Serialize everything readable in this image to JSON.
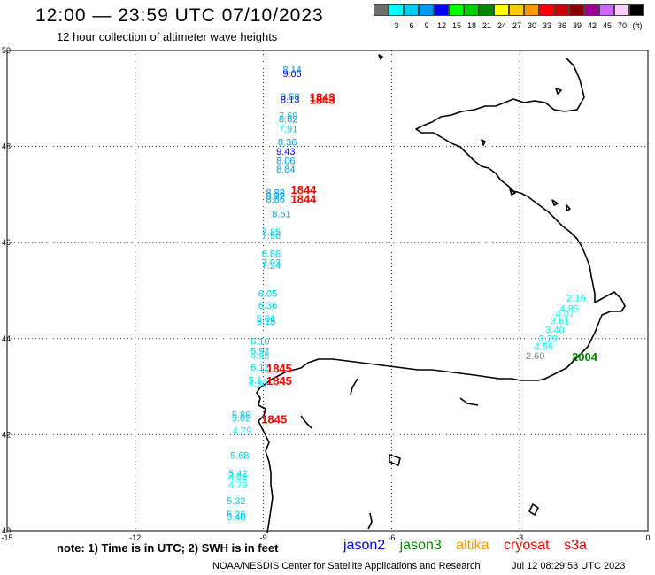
{
  "title": "12:00 — 23:59 UTC 07/10/2023",
  "subtitle": "12 hour collection of altimeter wave heights",
  "color_scale": {
    "unit": "(ft)",
    "bins": [
      {
        "label": "",
        "color": "#6e6e6e"
      },
      {
        "label": "3",
        "color": "#00ffff"
      },
      {
        "label": "6",
        "color": "#00ccee"
      },
      {
        "label": "9",
        "color": "#0099ee"
      },
      {
        "label": "12",
        "color": "#0000ff"
      },
      {
        "label": "15",
        "color": "#00ff00"
      },
      {
        "label": "18",
        "color": "#00cc00"
      },
      {
        "label": "21",
        "color": "#008800"
      },
      {
        "label": "24",
        "color": "#ffff00"
      },
      {
        "label": "27",
        "color": "#ffcc00"
      },
      {
        "label": "30",
        "color": "#ff9900"
      },
      {
        "label": "33",
        "color": "#ff0000"
      },
      {
        "label": "36",
        "color": "#cc0000"
      },
      {
        "label": "39",
        "color": "#880000"
      },
      {
        "label": "42",
        "color": "#990099"
      },
      {
        "label": "45",
        "color": "#cc66ff"
      },
      {
        "label": "70",
        "color": "#ffccff"
      },
      {
        "label": "",
        "color": "#000000"
      }
    ]
  },
  "axes": {
    "lon_ticks": [
      "-15",
      "-12",
      "-9",
      "-6",
      "-3",
      "0"
    ],
    "lat_ticks": [
      "50",
      "48",
      "46",
      "44",
      "42",
      "40"
    ],
    "lon_range": [
      -15,
      0
    ],
    "lat_range": [
      40,
      50
    ],
    "grid": true
  },
  "observations": [
    {
      "text": "8.14",
      "lon": -8.55,
      "lat": 49.53,
      "color": "#0099ee"
    },
    {
      "text": "9.05",
      "lon": -8.55,
      "lat": 49.45,
      "color": "#0000ff"
    },
    {
      "text": "8.53",
      "lon": -8.6,
      "lat": 48.97,
      "color": "#0099ee"
    },
    {
      "text": "8.13",
      "lon": -8.6,
      "lat": 48.9,
      "color": "#0000ff"
    },
    {
      "text": "7.69",
      "lon": -8.64,
      "lat": 48.57,
      "color": "#00ccee"
    },
    {
      "text": "8.62",
      "lon": -8.64,
      "lat": 48.5,
      "color": "#0099ee"
    },
    {
      "text": "7.91",
      "lon": -8.64,
      "lat": 48.3,
      "color": "#00ccee"
    },
    {
      "text": "8.36",
      "lon": -8.66,
      "lat": 48.02,
      "color": "#0099ee"
    },
    {
      "text": "9.43",
      "lon": -8.7,
      "lat": 47.83,
      "color": "#0000ff"
    },
    {
      "text": "8.06",
      "lon": -8.7,
      "lat": 47.63,
      "color": "#0099ee"
    },
    {
      "text": "8.84",
      "lon": -8.7,
      "lat": 47.46,
      "color": "#0099ee"
    },
    {
      "text": "8.88",
      "lon": -8.94,
      "lat": 46.97,
      "color": "#0099ee"
    },
    {
      "text": "8.77",
      "lon": -8.94,
      "lat": 46.9,
      "color": "#0099ee"
    },
    {
      "text": "8.86",
      "lon": -8.94,
      "lat": 46.83,
      "color": "#0099ee"
    },
    {
      "text": "8.51",
      "lon": -8.8,
      "lat": 46.53,
      "color": "#0099ee"
    },
    {
      "text": "7.85",
      "lon": -9.04,
      "lat": 46.15,
      "color": "#00ccee"
    },
    {
      "text": "7.96",
      "lon": -9.04,
      "lat": 46.08,
      "color": "#00ccee"
    },
    {
      "text": "6.86",
      "lon": -9.04,
      "lat": 45.7,
      "color": "#00ccee"
    },
    {
      "text": "7.03",
      "lon": -9.04,
      "lat": 45.52,
      "color": "#00ccee"
    },
    {
      "text": "7.24",
      "lon": -9.04,
      "lat": 45.45,
      "color": "#00ccee"
    },
    {
      "text": "6.05",
      "lon": -9.12,
      "lat": 44.87,
      "color": "#00ccee"
    },
    {
      "text": "6.36",
      "lon": -9.12,
      "lat": 44.62,
      "color": "#00ccee"
    },
    {
      "text": "5.01",
      "lon": -9.16,
      "lat": 44.35,
      "color": "#00ccee"
    },
    {
      "text": "6.15",
      "lon": -9.16,
      "lat": 44.29,
      "color": "#00ccee"
    },
    {
      "text": "6.10",
      "lon": -9.3,
      "lat": 43.88,
      "color": "#00ccee"
    },
    {
      "text": "5.92",
      "lon": -9.3,
      "lat": 43.67,
      "color": "#00ccee"
    },
    {
      "text": "4.95",
      "lon": -9.3,
      "lat": 43.57,
      "color": "#00ffff"
    },
    {
      "text": "6.12",
      "lon": -9.3,
      "lat": 43.33,
      "color": "#00ccee"
    },
    {
      "text": "5.1",
      "lon": -9.35,
      "lat": 43.07,
      "color": "#00ccee"
    },
    {
      "text": "4.90",
      "lon": -9.35,
      "lat": 43.0,
      "color": "#00ffff"
    },
    {
      "text": "5.86",
      "lon": -9.74,
      "lat": 42.35,
      "color": "#00ccee"
    },
    {
      "text": "5.02",
      "lon": -9.74,
      "lat": 42.27,
      "color": "#00ccee"
    },
    {
      "text": "4.79",
      "lon": -9.72,
      "lat": 42.02,
      "color": "#00ffff"
    },
    {
      "text": "5.68",
      "lon": -9.78,
      "lat": 41.5,
      "color": "#00ccee"
    },
    {
      "text": "5.42",
      "lon": -9.82,
      "lat": 41.12,
      "color": "#00ccee"
    },
    {
      "text": "4.82",
      "lon": -9.82,
      "lat": 41.05,
      "color": "#00ffff"
    },
    {
      "text": "4.79",
      "lon": -9.82,
      "lat": 40.88,
      "color": "#00ffff"
    },
    {
      "text": "5.32",
      "lon": -9.86,
      "lat": 40.55,
      "color": "#00ccee"
    },
    {
      "text": "5.26",
      "lon": -9.86,
      "lat": 40.28,
      "color": "#00ccee"
    },
    {
      "text": "5.40",
      "lon": -9.86,
      "lat": 40.21,
      "color": "#00ccee"
    },
    {
      "text": "2.16",
      "lon": -1.9,
      "lat": 44.78,
      "color": "#00ffff"
    },
    {
      "text": "4.85",
      "lon": -2.06,
      "lat": 44.56,
      "color": "#00ffff"
    },
    {
      "text": "4.07",
      "lon": -2.16,
      "lat": 44.45,
      "color": "#00ffff"
    },
    {
      "text": "3.61",
      "lon": -2.28,
      "lat": 44.3,
      "color": "#00ffff"
    },
    {
      "text": "3.40",
      "lon": -2.4,
      "lat": 44.12,
      "color": "#00ffff"
    },
    {
      "text": "3.29",
      "lon": -2.56,
      "lat": 43.93,
      "color": "#00ffff"
    },
    {
      "text": "4.56",
      "lon": -2.66,
      "lat": 43.77,
      "color": "#00ffff"
    },
    {
      "text": "2.60",
      "lon": -2.86,
      "lat": 43.57,
      "color": "#888888"
    }
  ],
  "pass_times": [
    {
      "text": "1843",
      "lon": -7.92,
      "lat": 48.94,
      "color": "#ff0000"
    },
    {
      "text": "1843",
      "lon": -7.92,
      "lat": 48.89,
      "color": "#ff0000"
    },
    {
      "text": "1844",
      "lon": -8.36,
      "lat": 47.02,
      "color": "#ff0000"
    },
    {
      "text": "1844",
      "lon": -8.36,
      "lat": 46.82,
      "color": "#ff0000"
    },
    {
      "text": "1845",
      "lon": -8.93,
      "lat": 43.3,
      "color": "#ff0000"
    },
    {
      "text": "1845",
      "lon": -8.93,
      "lat": 43.04,
      "color": "#ff0000"
    },
    {
      "text": "1845",
      "lon": -9.05,
      "lat": 42.24,
      "color": "#ff0000"
    },
    {
      "text": "2004",
      "lon": -1.78,
      "lat": 43.54,
      "color": "#008800"
    }
  ],
  "note": "note:  1) Time is in UTC; 2) SWH is in feet",
  "satellites": [
    {
      "name": "jason2",
      "color": "#0000ff"
    },
    {
      "name": "jason3",
      "color": "#008800"
    },
    {
      "name": "altika",
      "color": "#ff9900"
    },
    {
      "name": "cryosat",
      "color": "#ff0000"
    },
    {
      "name": "s3a",
      "color": "#cc0000"
    }
  ],
  "footer": {
    "credit": "NOAA/NESDIS Center for Satellite Applications and Research",
    "timestamp": "Jul 12 08:29:53 UTC 2023"
  }
}
